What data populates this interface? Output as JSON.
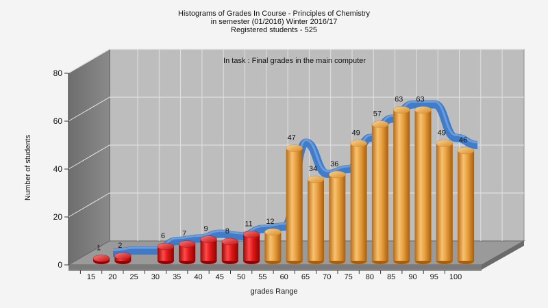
{
  "chart_data": {
    "type": "bar",
    "title_lines": [
      "Histograms of Grades  In Course - Principles of Chemistry",
      "in semester  (01/2016) Winter 2016/17",
      "Registered students - 525"
    ],
    "annotation": "In task : Final grades in the main computer",
    "xlabel": "grades Range",
    "ylabel": "Number of students",
    "ylim": [
      0,
      80
    ],
    "yticks": [
      "0",
      "20",
      "40",
      "60",
      "80"
    ],
    "categories": [
      "15",
      "20",
      "25",
      "30",
      "35",
      "40",
      "45",
      "50",
      "55",
      "60",
      "65",
      "70",
      "75",
      "80",
      "85",
      "90",
      "95",
      "100"
    ],
    "values": [
      1,
      2,
      null,
      6,
      7,
      9,
      8,
      11,
      12,
      47,
      34,
      36,
      49,
      57,
      63,
      63,
      49,
      46
    ],
    "data_labels": [
      "1",
      "2",
      "",
      "6",
      "7",
      "9",
      "8",
      "11",
      "12",
      "47",
      "34",
      "36",
      "49",
      "57",
      "63",
      "63",
      "49",
      "46"
    ],
    "fail_color": "#e01818",
    "pass_color": "#e8a040",
    "trend_color": "#3a78c8",
    "grid": true,
    "view": "3d"
  }
}
